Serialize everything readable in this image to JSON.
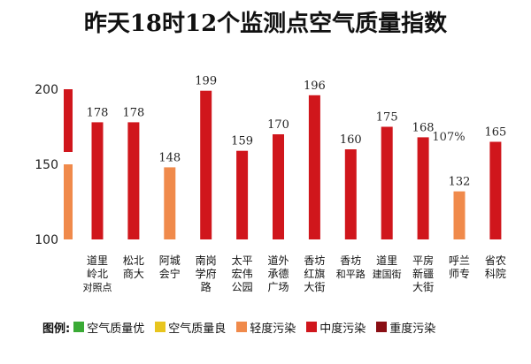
{
  "chart_data": {
    "type": "bar",
    "title": "昨天18时12个监测点空气质量指数",
    "yticks": [
      100,
      150,
      200
    ],
    "ylim": [
      100,
      210
    ],
    "grid": false,
    "categories": [
      [
        "道里",
        "岭北",
        "对照点"
      ],
      [
        "松北",
        "商大"
      ],
      [
        "阿城",
        "会宁"
      ],
      [
        "南岗",
        "学府",
        "路"
      ],
      [
        "太平",
        "宏伟",
        "公园"
      ],
      [
        "道外",
        "承德",
        "广场"
      ],
      [
        "香坊",
        "红旗",
        "大街"
      ],
      [
        "香坊",
        "和平路"
      ],
      [
        "道里",
        "建国街"
      ],
      [
        "平房",
        "新疆",
        "大街"
      ],
      [
        "呼兰",
        "师专"
      ],
      [
        "省农",
        "科院"
      ]
    ],
    "values": [
      178,
      178,
      148,
      199,
      159,
      170,
      196,
      160,
      175,
      168,
      132,
      165
    ],
    "value_labels": [
      "178",
      "178",
      "148",
      "199",
      "159",
      "170",
      "196",
      "160",
      "175",
      "168",
      "132",
      "165"
    ],
    "bar_levels": [
      "moderate",
      "moderate",
      "light",
      "moderate",
      "moderate",
      "moderate",
      "moderate",
      "moderate",
      "moderate",
      "moderate",
      "light",
      "moderate"
    ],
    "annotation": {
      "text": "107%",
      "near_category_index": 10
    },
    "scale_bar": [
      {
        "level": "moderate",
        "from": 150,
        "to": 200
      },
      {
        "level": "light",
        "from": 100,
        "to": 150
      }
    ],
    "legend_title": "图例:",
    "legend": [
      {
        "level": "excellent",
        "label": "空气质量优",
        "color": "#3aaa35"
      },
      {
        "level": "good",
        "label": "空气质量良",
        "color": "#e8c51e"
      },
      {
        "level": "light",
        "label": "轻度污染",
        "color": "#f08a4b"
      },
      {
        "level": "moderate",
        "label": "中度污染",
        "color": "#d0161c"
      },
      {
        "level": "heavy",
        "label": "重度污染",
        "color": "#8a0e14"
      }
    ],
    "legend_placement": "bottom"
  }
}
